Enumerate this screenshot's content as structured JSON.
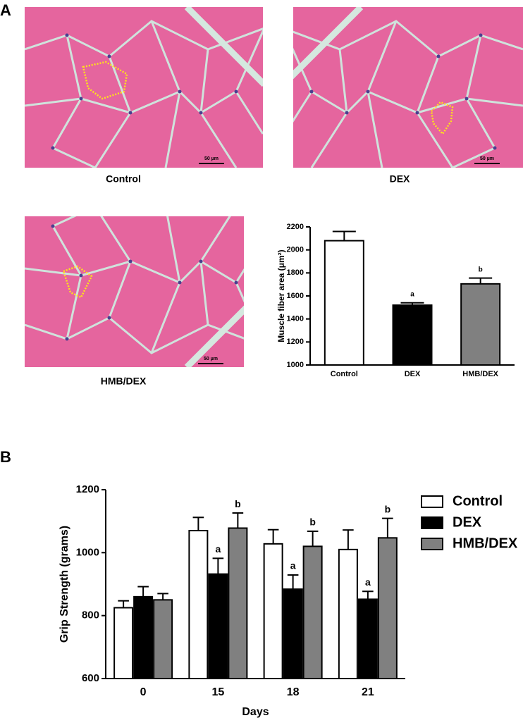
{
  "panel_labels": [
    "A",
    "B"
  ],
  "micrographs": [
    {
      "caption": "Control",
      "scale_bar": "50 µm"
    },
    {
      "caption": "DEX",
      "scale_bar": "50 µm"
    },
    {
      "caption": "HMB/DEX",
      "scale_bar": "50 µm"
    }
  ],
  "chart_data": [
    {
      "type": "bar",
      "y_label": "Muscle fiber area (μm²)",
      "categories": [
        "Control",
        "DEX",
        "HMB/DEX"
      ],
      "values": [
        2080,
        1520,
        1705
      ],
      "errors": [
        80,
        20,
        50
      ],
      "colors": [
        "#ffffff",
        "#000000",
        "#808080"
      ],
      "annotations": [
        null,
        "a",
        "b"
      ],
      "ylim": [
        1000,
        2200
      ],
      "yticks": [
        1000,
        1200,
        1400,
        1600,
        1800,
        2000,
        2200
      ]
    },
    {
      "type": "grouped_bar",
      "x_label": "Days",
      "y_label": "Grip Strength (grams)",
      "categories": [
        "0",
        "15",
        "18",
        "21"
      ],
      "series": [
        {
          "name": "Control",
          "color": "#ffffff",
          "values": [
            825,
            1070,
            1028,
            1010
          ],
          "errors": [
            22,
            42,
            45,
            62
          ],
          "annotations": [
            null,
            null,
            null,
            null
          ]
        },
        {
          "name": "DEX",
          "color": "#000000",
          "values": [
            860,
            932,
            884,
            852
          ],
          "errors": [
            32,
            50,
            45,
            25
          ],
          "annotations": [
            null,
            "a",
            "a",
            "a"
          ]
        },
        {
          "name": "HMB/DEX",
          "color": "#808080",
          "values": [
            850,
            1078,
            1020,
            1047
          ],
          "errors": [
            20,
            48,
            48,
            62
          ],
          "annotations": [
            null,
            "b",
            "b",
            "b"
          ]
        }
      ],
      "ylim": [
        600,
        1200
      ],
      "yticks": [
        600,
        800,
        1000,
        1200
      ],
      "legend": "right"
    }
  ]
}
